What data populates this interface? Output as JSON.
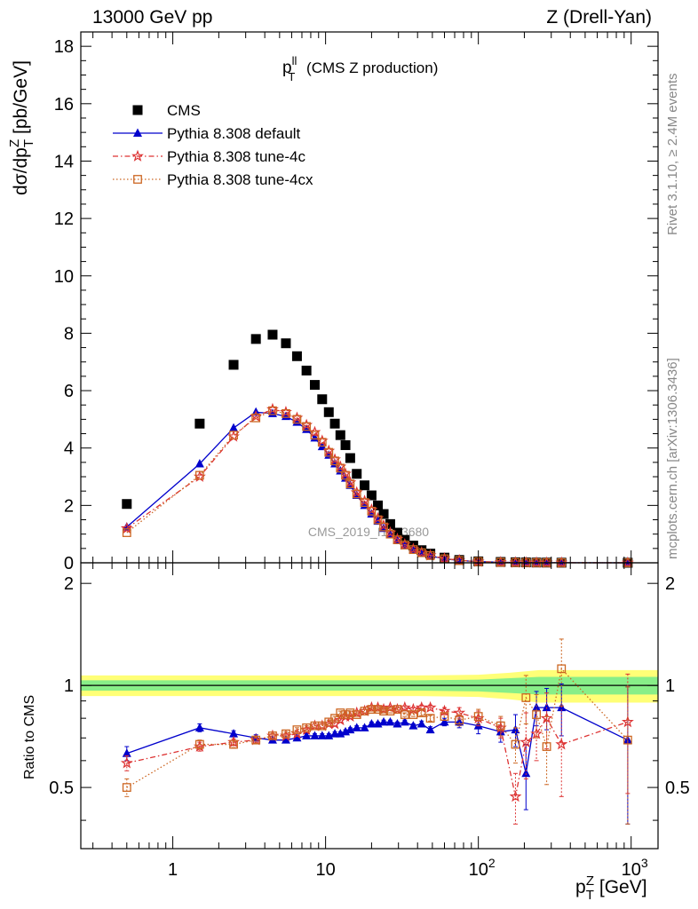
{
  "header": {
    "left": "13000 GeV pp",
    "right": "Z (Drell-Yan)"
  },
  "side_text": {
    "rivet": "Rivet 3.1.10, ≥ 2.4M events",
    "mcplots": "mcplots.cern.ch [arXiv:1306.3436]"
  },
  "watermark": "CMS_2019_I1753680",
  "plot_title": {
    "main": "p",
    "sup": "ll",
    "sub": "T",
    "rest": " (CMS Z production)"
  },
  "ylabel_top": {
    "a": "dσ/dp",
    "sup": "Z",
    "sub": "T",
    "b": " [pb/GeV]"
  },
  "ylabel_bottom": "Ratio to CMS",
  "xlabel": {
    "a": "p",
    "sup": "Z",
    "sub": "T",
    "b": " [GeV]"
  },
  "colors": {
    "data": "#000000",
    "default": "#0000cc",
    "tune4c": "#dd3333",
    "tune4cx": "#cc6622",
    "band_inner": "#88ee88",
    "band_outer": "#ffff77"
  },
  "chart_data": {
    "type": "scatter",
    "x_scale": "log",
    "xlim": [
      0.25,
      1500
    ],
    "top": {
      "ylim": [
        0,
        18.5
      ],
      "yticks": [
        0,
        2,
        4,
        6,
        8,
        10,
        12,
        14,
        16,
        18
      ]
    },
    "bottom": {
      "ylim": [
        0.33,
        2.3
      ],
      "yscale": "log",
      "yticks": [
        0.5,
        1,
        2
      ]
    },
    "xticks": [
      {
        "value": 1,
        "label": "1"
      },
      {
        "value": 10,
        "label": "10"
      },
      {
        "value": 100,
        "label": "10",
        "exp": "2"
      },
      {
        "value": 1000,
        "label": "10",
        "exp": "3"
      }
    ],
    "legend": [
      {
        "name": "CMS",
        "style": "data"
      },
      {
        "name": "Pythia 8.308 default",
        "style": "default"
      },
      {
        "name": "Pythia 8.308 tune-4c",
        "style": "tune4c"
      },
      {
        "name": "Pythia 8.308 tune-4cx",
        "style": "tune4cx"
      }
    ],
    "x": [
      0.5,
      1.5,
      2.5,
      3.5,
      4.5,
      5.5,
      6.5,
      7.5,
      8.5,
      9.5,
      10.5,
      11.5,
      12.5,
      13.5,
      14.5,
      16,
      18,
      20,
      22,
      24,
      26.5,
      29.5,
      33,
      37.5,
      42.5,
      48.5,
      60,
      75,
      100,
      140,
      175,
      205,
      240,
      280,
      350,
      950
    ],
    "series": [
      {
        "name": "CMS",
        "key": "data",
        "values": [
          2.05,
          4.85,
          6.9,
          7.8,
          7.95,
          7.65,
          7.2,
          6.7,
          6.2,
          5.7,
          5.25,
          4.85,
          4.45,
          4.1,
          3.65,
          3.1,
          2.7,
          2.35,
          2.0,
          1.7,
          1.35,
          1.05,
          0.8,
          0.6,
          0.44,
          0.32,
          0.18,
          0.1,
          0.05,
          0.03,
          0.02,
          0.015,
          0.01,
          0.008,
          0.004,
          0.001
        ]
      },
      {
        "name": "Pythia 8.308 default",
        "key": "default",
        "values": [
          1.25,
          3.45,
          4.7,
          5.25,
          5.2,
          5.1,
          4.9,
          4.65,
          4.35,
          4.05,
          3.75,
          3.45,
          3.2,
          2.95,
          2.7,
          2.35,
          2.0,
          1.7,
          1.45,
          1.2,
          0.98,
          0.78,
          0.6,
          0.45,
          0.34,
          0.24,
          0.14,
          0.08,
          0.04,
          0.02,
          0.01,
          0.008,
          0.006,
          0.005,
          0.003,
          0.001
        ]
      },
      {
        "name": "Pythia 8.308 tune-4c",
        "key": "tune4c",
        "values": [
          1.2,
          3.0,
          4.4,
          5.1,
          5.35,
          5.25,
          5.05,
          4.8,
          4.55,
          4.25,
          3.9,
          3.6,
          3.35,
          3.1,
          2.8,
          2.45,
          2.15,
          1.85,
          1.55,
          1.3,
          1.05,
          0.83,
          0.64,
          0.48,
          0.36,
          0.26,
          0.15,
          0.09,
          0.04,
          0.02,
          0.01,
          0.008,
          0.006,
          0.005,
          0.003,
          0.001
        ]
      },
      {
        "name": "Pythia 8.308 tune-4cx",
        "key": "tune4cx",
        "values": [
          1.05,
          3.05,
          4.45,
          5.05,
          5.3,
          5.2,
          5.0,
          4.75,
          4.45,
          4.2,
          3.85,
          3.55,
          3.3,
          3.05,
          2.75,
          2.4,
          2.1,
          1.8,
          1.5,
          1.25,
          1.0,
          0.8,
          0.62,
          0.46,
          0.35,
          0.25,
          0.14,
          0.08,
          0.04,
          0.02,
          0.01,
          0.008,
          0.006,
          0.005,
          0.003,
          0.001
        ]
      }
    ],
    "ratio_series": [
      {
        "key": "default",
        "values": [
          0.63,
          0.75,
          0.72,
          0.7,
          0.69,
          0.69,
          0.7,
          0.71,
          0.71,
          0.71,
          0.71,
          0.72,
          0.72,
          0.73,
          0.74,
          0.75,
          0.75,
          0.77,
          0.77,
          0.78,
          0.78,
          0.77,
          0.78,
          0.76,
          0.77,
          0.74,
          0.78,
          0.78,
          0.76,
          0.73,
          0.74,
          0.55,
          0.86,
          0.86,
          0.86,
          0.69
        ],
        "err": [
          0.03,
          0.02,
          0.015,
          0.015,
          0.01,
          0.01,
          0.01,
          0.01,
          0.01,
          0.01,
          0.01,
          0.01,
          0.01,
          0.01,
          0.01,
          0.01,
          0.01,
          0.01,
          0.01,
          0.01,
          0.01,
          0.01,
          0.01,
          0.01,
          0.015,
          0.015,
          0.02,
          0.03,
          0.04,
          0.05,
          0.08,
          0.12,
          0.1,
          0.12,
          0.15,
          0.3
        ]
      },
      {
        "key": "tune4c",
        "values": [
          0.59,
          0.66,
          0.68,
          0.69,
          0.71,
          0.71,
          0.72,
          0.74,
          0.76,
          0.76,
          0.77,
          0.77,
          0.79,
          0.81,
          0.81,
          0.83,
          0.84,
          0.86,
          0.86,
          0.85,
          0.86,
          0.85,
          0.86,
          0.85,
          0.86,
          0.86,
          0.84,
          0.83,
          0.8,
          0.75,
          0.47,
          0.68,
          0.72,
          0.8,
          0.67,
          0.78
        ],
        "err": [
          0.03,
          0.02,
          0.015,
          0.015,
          0.01,
          0.01,
          0.01,
          0.01,
          0.01,
          0.01,
          0.01,
          0.01,
          0.01,
          0.01,
          0.01,
          0.01,
          0.01,
          0.01,
          0.01,
          0.01,
          0.01,
          0.01,
          0.01,
          0.01,
          0.015,
          0.015,
          0.02,
          0.03,
          0.04,
          0.05,
          0.08,
          0.15,
          0.12,
          0.15,
          0.2,
          0.3
        ]
      },
      {
        "key": "tune4cx",
        "values": [
          0.5,
          0.67,
          0.67,
          0.69,
          0.71,
          0.72,
          0.74,
          0.75,
          0.76,
          0.76,
          0.78,
          0.8,
          0.83,
          0.82,
          0.83,
          0.82,
          0.84,
          0.85,
          0.85,
          0.84,
          0.84,
          0.85,
          0.82,
          0.82,
          0.83,
          0.8,
          0.81,
          0.79,
          0.81,
          0.76,
          0.67,
          0.92,
          0.82,
          0.66,
          1.12,
          0.69
        ],
        "err": [
          0.03,
          0.02,
          0.015,
          0.015,
          0.01,
          0.01,
          0.01,
          0.01,
          0.01,
          0.01,
          0.01,
          0.01,
          0.01,
          0.01,
          0.01,
          0.01,
          0.01,
          0.01,
          0.01,
          0.01,
          0.01,
          0.01,
          0.01,
          0.01,
          0.015,
          0.015,
          0.02,
          0.03,
          0.04,
          0.05,
          0.08,
          0.15,
          0.12,
          0.15,
          0.25,
          0.3
        ]
      }
    ],
    "ratio_band": {
      "x_from": [
        0.25,
        40,
        100,
        160,
        250,
        400,
        1500
      ],
      "inner_half": [
        0.035,
        0.035,
        0.04,
        0.05,
        0.06,
        0.06,
        0.06
      ],
      "outer_half": [
        0.07,
        0.07,
        0.075,
        0.09,
        0.11,
        0.11,
        0.11
      ]
    }
  }
}
